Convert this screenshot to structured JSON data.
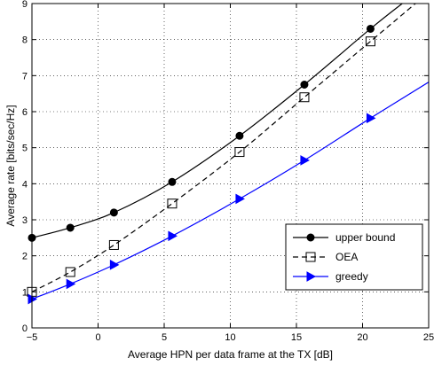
{
  "chart_data": {
    "type": "line",
    "title": "",
    "xlabel": "Average HPN per data frame at the TX [dB]",
    "ylabel": "Average rate [bits/sec/Hz]",
    "xlim": [
      -5,
      25
    ],
    "ylim": [
      0,
      9
    ],
    "xticks": [
      "−5",
      "0",
      "5",
      "10",
      "15",
      "20",
      "25"
    ],
    "yticks": [
      "0",
      "1",
      "2",
      "3",
      "4",
      "5",
      "6",
      "7",
      "8",
      "9"
    ],
    "grid": true,
    "legend_position": "bottom-right",
    "series": [
      {
        "name": "upper bound",
        "color": "#000000",
        "line_style": "solid",
        "marker": "filled-circle",
        "x": [
          -5,
          -2.1,
          1.2,
          5.6,
          10.7,
          15.6,
          20.6
        ],
        "y": [
          2.5,
          2.78,
          3.2,
          4.05,
          5.33,
          6.75,
          8.3
        ],
        "curve": {
          "x": [
            -5,
            -2.1,
            1.2,
            5.6,
            10.7,
            15.6,
            20.6,
            23.0
          ],
          "y": [
            2.5,
            2.78,
            3.2,
            4.05,
            5.33,
            6.75,
            8.3,
            9.0
          ]
        }
      },
      {
        "name": "OEA",
        "color": "#000000",
        "line_style": "dashed",
        "marker": "open-square",
        "x": [
          -5,
          -2.1,
          1.2,
          5.6,
          10.7,
          15.6,
          20.6
        ],
        "y": [
          1.0,
          1.55,
          2.3,
          3.45,
          4.88,
          6.4,
          7.95
        ],
        "curve": {
          "x": [
            -5,
            -2.1,
            1.2,
            5.6,
            10.7,
            15.6,
            20.6,
            24.0
          ],
          "y": [
            1.0,
            1.55,
            2.3,
            3.45,
            4.88,
            6.4,
            7.95,
            9.0
          ]
        }
      },
      {
        "name": "greedy",
        "color": "#0000ff",
        "line_style": "solid",
        "marker": "filled-right-triangle",
        "x": [
          -5,
          -2.1,
          1.2,
          5.6,
          10.7,
          15.6,
          20.6
        ],
        "y": [
          0.8,
          1.22,
          1.75,
          2.55,
          3.58,
          4.65,
          5.82
        ],
        "curve": {
          "x": [
            -5,
            -2.1,
            1.2,
            5.6,
            10.7,
            15.6,
            20.6,
            25.0
          ],
          "y": [
            0.8,
            1.22,
            1.75,
            2.55,
            3.58,
            4.65,
            5.82,
            6.82
          ]
        }
      }
    ]
  }
}
